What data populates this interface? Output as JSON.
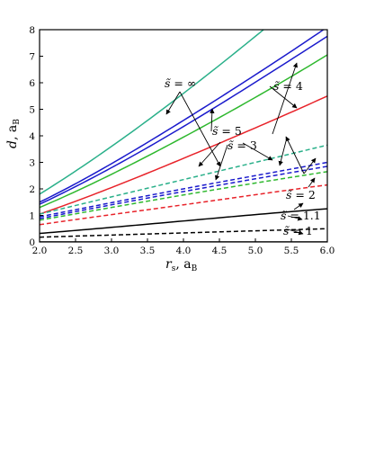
{
  "chart_data": {
    "type": "line",
    "xlabel": "r_s, a_B",
    "ylabel": "d, a_B",
    "xlim": [
      2.0,
      6.0
    ],
    "ylim": [
      0,
      8
    ],
    "xticks": [
      "2.0",
      "2.5",
      "3.0",
      "3.5",
      "4.0",
      "4.5",
      "5.0",
      "5.5",
      "6.0"
    ],
    "yticks": [
      "0",
      "1",
      "2",
      "3",
      "4",
      "5",
      "6",
      "7",
      "8"
    ],
    "grid": false,
    "legend": "none",
    "series": [
      {
        "s": "1",
        "style": "solid",
        "color": "#000000",
        "x": [
          2,
          3,
          4,
          5,
          6
        ],
        "y": [
          0,
          0,
          0,
          0,
          0
        ]
      },
      {
        "s": "1.1",
        "style": "solid",
        "color": "#000000",
        "x": [
          2,
          3,
          4,
          5,
          6
        ],
        "y": [
          0.32,
          0.55,
          0.79,
          1.03,
          1.25
        ]
      },
      {
        "s": "1.1",
        "style": "dashed",
        "color": "#000000",
        "x": [
          2,
          3,
          4,
          5,
          6
        ],
        "y": [
          0.18,
          0.26,
          0.34,
          0.42,
          0.5
        ]
      },
      {
        "s": "2",
        "style": "solid",
        "color": "#e8232a",
        "x": [
          2,
          3,
          4,
          5,
          6
        ],
        "y": [
          1.05,
          2.05,
          3.15,
          4.3,
          5.5
        ]
      },
      {
        "s": "2",
        "style": "dashed",
        "color": "#e8232a",
        "x": [
          2,
          3,
          4,
          5,
          6
        ],
        "y": [
          0.65,
          1.03,
          1.4,
          1.78,
          2.15
        ]
      },
      {
        "s": "3",
        "style": "solid",
        "color": "#2eb82e",
        "x": [
          2,
          3,
          4,
          5,
          6
        ],
        "y": [
          1.3,
          2.55,
          3.95,
          5.45,
          7.05
        ]
      },
      {
        "s": "3",
        "style": "dashed",
        "color": "#2eb82e",
        "x": [
          2,
          3,
          4,
          5,
          6
        ],
        "y": [
          0.82,
          1.3,
          1.77,
          2.22,
          2.65
        ]
      },
      {
        "s": "4",
        "style": "solid",
        "color": "#1a1acc",
        "x": [
          2,
          3,
          4,
          5,
          6
        ],
        "y": [
          1.42,
          2.8,
          4.35,
          6.02,
          7.75
        ]
      },
      {
        "s": "4",
        "style": "dashed",
        "color": "#1a1acc",
        "x": [
          2,
          3,
          4,
          5,
          6
        ],
        "y": [
          0.88,
          1.4,
          1.9,
          2.38,
          2.85
        ]
      },
      {
        "s": "5",
        "style": "solid",
        "color": "#1a1acc",
        "x": [
          2,
          3,
          4,
          5,
          6
        ],
        "y": [
          1.5,
          2.95,
          4.58,
          6.3,
          8.1
        ]
      },
      {
        "s": "5",
        "style": "dashed",
        "color": "#1a1acc",
        "x": [
          2,
          3,
          4,
          5,
          6
        ],
        "y": [
          0.95,
          1.48,
          2.0,
          2.5,
          3.0
        ]
      },
      {
        "s": "∞",
        "style": "solid",
        "color": "#2ab08a",
        "x": [
          2,
          3,
          4,
          5,
          6
        ],
        "y": [
          1.8,
          3.6,
          5.6,
          7.75,
          10.0
        ]
      },
      {
        "s": "∞",
        "style": "dashed",
        "color": "#2ab08a",
        "x": [
          2,
          3,
          4,
          5,
          6
        ],
        "y": [
          1.05,
          1.7,
          2.35,
          3.0,
          3.65
        ]
      }
    ],
    "annotations": [
      {
        "text": "s̃ = ∞"
      },
      {
        "text": "s̃ = 5"
      },
      {
        "text": "s̃ = 4"
      },
      {
        "text": "s̃ = 3"
      },
      {
        "text": "s̃ = 2"
      },
      {
        "text": "s̃ = 1.1"
      },
      {
        "text": "s̃ = 1"
      }
    ]
  }
}
